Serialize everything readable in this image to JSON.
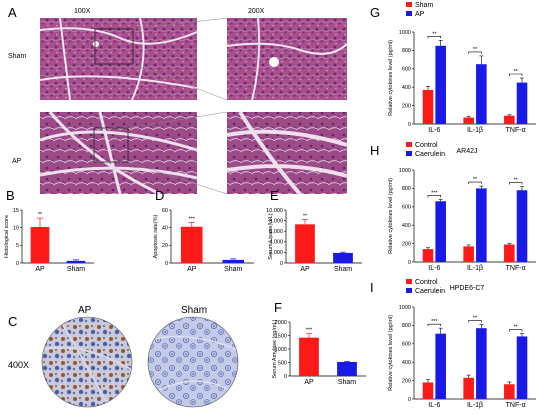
{
  "colors": {
    "red": "#ff1a1a",
    "blue": "#1a1ae6",
    "tissue": "#b0558f",
    "stain": "#c8d0ea"
  },
  "panelA": {
    "letter": "A",
    "mag_low": "100X",
    "mag_high": "200X",
    "row_labels": [
      "Sham",
      "AP"
    ]
  },
  "panelC": {
    "letter": "C",
    "labels": [
      "AP",
      "Sham"
    ],
    "mag": "400X"
  },
  "charts": [
    {
      "id": "B",
      "letter": "B",
      "type": "bar",
      "ylabel": "Histological score",
      "ylim": [
        0,
        15
      ],
      "yticks": [
        0,
        5,
        10,
        15
      ],
      "categories": [
        "AP",
        "Sham"
      ],
      "values": [
        10.2,
        0.6
      ],
      "errors": [
        2.5,
        0.3
      ],
      "colors": [
        "#ff1a1a",
        "#1a1ae6"
      ],
      "significance": "**",
      "frame": [
        22,
        210,
        72,
        53
      ]
    },
    {
      "id": "D",
      "letter": "D",
      "type": "bar",
      "ylabel": "Apoptosis rate(%)",
      "ylim": [
        0,
        60
      ],
      "yticks": [
        0,
        20,
        40,
        60
      ],
      "categories": [
        "AP",
        "Sham"
      ],
      "values": [
        41,
        3.5
      ],
      "errors": [
        5,
        1.2
      ],
      "colors": [
        "#ff1a1a",
        "#1a1ae6"
      ],
      "significance": "***",
      "frame": [
        171,
        210,
        83,
        53
      ]
    },
    {
      "id": "E",
      "letter": "E",
      "type": "bar",
      "ylabel": "Serum Lipase(U/L)",
      "ylim": [
        0,
        10000
      ],
      "yticks": [
        0,
        2000,
        4000,
        6000,
        8000,
        10000
      ],
      "ytick_labels": [
        "0",
        "2,000",
        "4,000",
        "6,000",
        "8,000",
        "10,000"
      ],
      "categories": [
        "AP",
        "Sham"
      ],
      "values": [
        7300,
        1900
      ],
      "errors": [
        900,
        150
      ],
      "colors": [
        "#ff1a1a",
        "#1a1ae6"
      ],
      "significance": "**",
      "frame": [
        286,
        210,
        76,
        53
      ]
    },
    {
      "id": "F",
      "letter": "F",
      "type": "bar",
      "ylabel": "Serum Amylase (ng/mL)",
      "ylim": [
        0,
        2000
      ],
      "yticks": [
        0,
        500,
        1000,
        1500,
        2000
      ],
      "categories": [
        "AP",
        "Sham"
      ],
      "values": [
        1420,
        520
      ],
      "errors": [
        150,
        25
      ],
      "colors": [
        "#ff1a1a",
        "#1a1ae6"
      ],
      "significance": "***",
      "frame": [
        290,
        322,
        76,
        54
      ]
    },
    {
      "id": "G",
      "letter": "G",
      "type": "grouped-bar",
      "ylabel": "Relative cytokines level (pg/ml)",
      "ylim": [
        0,
        1000
      ],
      "yticks": [
        0,
        200,
        400,
        600,
        800,
        1000
      ],
      "categories": [
        "IL-6",
        "IL-1β",
        "TNF-α"
      ],
      "series": [
        {
          "name": "Sham",
          "color": "#ff1a1a",
          "values": [
            370,
            70,
            90
          ],
          "errors": [
            40,
            15,
            10
          ]
        },
        {
          "name": "AP",
          "color": "#1a1ae6",
          "values": [
            850,
            650,
            450
          ],
          "errors": [
            60,
            90,
            50
          ]
        }
      ],
      "significance": [
        "**",
        "**",
        "**"
      ],
      "frame": [
        414,
        32,
        122,
        92
      ]
    },
    {
      "id": "H",
      "letter": "H",
      "title": "AR42J",
      "type": "grouped-bar",
      "ylabel": "Relative cytokines level (pg/ml)",
      "ylim": [
        0,
        1000
      ],
      "yticks": [
        0,
        200,
        400,
        600,
        800,
        1000
      ],
      "categories": [
        "IL-6",
        "IL-1β",
        "TNF-α"
      ],
      "series": [
        {
          "name": "Control",
          "color": "#ff1a1a",
          "values": [
            140,
            170,
            190
          ],
          "errors": [
            15,
            15,
            10
          ]
        },
        {
          "name": "Caerulein",
          "color": "#1a1ae6",
          "values": [
            660,
            800,
            780
          ],
          "errors": [
            20,
            25,
            40
          ]
        }
      ],
      "significance": [
        "***",
        "**",
        "**"
      ],
      "frame": [
        414,
        170,
        122,
        92
      ]
    },
    {
      "id": "I",
      "letter": "I",
      "title": "HPDE6-C7",
      "type": "grouped-bar",
      "ylabel": "Relative cytokines level (pg/ml)",
      "ylim": [
        0,
        1000
      ],
      "yticks": [
        0,
        200,
        400,
        600,
        800,
        1000
      ],
      "categories": [
        "IL-6",
        "IL-1β",
        "TNF-α"
      ],
      "series": [
        {
          "name": "Control",
          "color": "#ff1a1a",
          "values": [
            180,
            230,
            160
          ],
          "errors": [
            30,
            30,
            25
          ]
        },
        {
          "name": "Caerulein",
          "color": "#1a1ae6",
          "values": [
            710,
            770,
            680
          ],
          "errors": [
            60,
            40,
            30
          ]
        }
      ],
      "significance": [
        "***",
        "**",
        "**"
      ],
      "frame": [
        414,
        307,
        122,
        92
      ]
    }
  ]
}
